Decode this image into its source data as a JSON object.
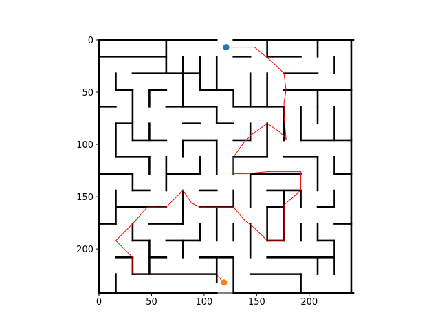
{
  "figure": {
    "x_ticks": [
      "0",
      "50",
      "100",
      "150",
      "200"
    ],
    "y_ticks": [
      "0",
      "50",
      "100",
      "150",
      "200"
    ]
  },
  "chart_data": {
    "type": "scatter",
    "title": "",
    "xlabel": "",
    "ylabel": "",
    "xlim": [
      0,
      242
    ],
    "ylim": [
      242,
      0
    ],
    "grid": false,
    "x_ticks": [
      0,
      50,
      100,
      150,
      200
    ],
    "y_ticks": [
      0,
      50,
      100,
      150,
      200
    ],
    "colors": {
      "wall": "#000000",
      "path": "#ff0000",
      "start": "#1f77b4",
      "end": "#ff7f0e"
    },
    "start": [
      121,
      7
    ],
    "end": [
      119,
      232
    ],
    "maze_walls": [
      [
        [
          0,
          0
        ],
        [
          112,
          0
        ]
      ],
      [
        [
          128,
          0
        ],
        [
          242,
          0
        ]
      ],
      [
        [
          0,
          0
        ],
        [
          0,
          242
        ]
      ],
      [
        [
          240,
          0
        ],
        [
          240,
          242
        ]
      ],
      [
        [
          0,
          242
        ],
        [
          112,
          242
        ]
      ],
      [
        [
          128,
          242
        ],
        [
          242,
          242
        ]
      ],
      [
        [
          0,
          16
        ],
        [
          64,
          16
        ]
      ],
      [
        [
          64,
          0
        ],
        [
          64,
          32
        ]
      ],
      [
        [
          80,
          16
        ],
        [
          80,
          32
        ]
      ],
      [
        [
          96,
          16
        ],
        [
          96,
          48
        ]
      ],
      [
        [
          112,
          16
        ],
        [
          112,
          48
        ]
      ],
      [
        [
          128,
          16
        ],
        [
          144,
          16
        ]
      ],
      [
        [
          160,
          0
        ],
        [
          160,
          16
        ]
      ],
      [
        [
          160,
          16
        ],
        [
          192,
          16
        ]
      ],
      [
        [
          208,
          0
        ],
        [
          208,
          16
        ]
      ],
      [
        [
          176,
          32
        ],
        [
          208,
          32
        ]
      ],
      [
        [
          224,
          16
        ],
        [
          224,
          32
        ]
      ],
      [
        [
          16,
          32
        ],
        [
          16,
          48
        ]
      ],
      [
        [
          16,
          48
        ],
        [
          32,
          48
        ]
      ],
      [
        [
          32,
          32
        ],
        [
          96,
          32
        ]
      ],
      [
        [
          80,
          32
        ],
        [
          80,
          64
        ]
      ],
      [
        [
          96,
          48
        ],
        [
          128,
          48
        ]
      ],
      [
        [
          128,
          48
        ],
        [
          128,
          64
        ]
      ],
      [
        [
          144,
          32
        ],
        [
          144,
          64
        ]
      ],
      [
        [
          160,
          32
        ],
        [
          160,
          64
        ]
      ],
      [
        [
          176,
          48
        ],
        [
          224,
          48
        ]
      ],
      [
        [
          208,
          48
        ],
        [
          208,
          64
        ]
      ],
      [
        [
          224,
          48
        ],
        [
          240,
          48
        ]
      ],
      [
        [
          0,
          64
        ],
        [
          16,
          64
        ]
      ],
      [
        [
          32,
          48
        ],
        [
          32,
          96
        ]
      ],
      [
        [
          48,
          48
        ],
        [
          64,
          48
        ]
      ],
      [
        [
          48,
          48
        ],
        [
          48,
          64
        ]
      ],
      [
        [
          64,
          64
        ],
        [
          80,
          64
        ]
      ],
      [
        [
          80,
          64
        ],
        [
          112,
          64
        ]
      ],
      [
        [
          112,
          64
        ],
        [
          112,
          80
        ]
      ],
      [
        [
          128,
          64
        ],
        [
          176,
          64
        ]
      ],
      [
        [
          176,
          64
        ],
        [
          176,
          96
        ]
      ],
      [
        [
          192,
          64
        ],
        [
          192,
          96
        ]
      ],
      [
        [
          208,
          64
        ],
        [
          208,
          80
        ]
      ],
      [
        [
          224,
          64
        ],
        [
          224,
          96
        ]
      ],
      [
        [
          16,
          80
        ],
        [
          32,
          80
        ]
      ],
      [
        [
          16,
          80
        ],
        [
          16,
          112
        ]
      ],
      [
        [
          48,
          80
        ],
        [
          48,
          96
        ]
      ],
      [
        [
          80,
          80
        ],
        [
          96,
          80
        ]
      ],
      [
        [
          112,
          80
        ],
        [
          128,
          80
        ]
      ],
      [
        [
          144,
          80
        ],
        [
          144,
          96
        ]
      ],
      [
        [
          160,
          80
        ],
        [
          160,
          112
        ]
      ],
      [
        [
          32,
          96
        ],
        [
          64,
          96
        ]
      ],
      [
        [
          80,
          96
        ],
        [
          112,
          96
        ]
      ],
      [
        [
          128,
          96
        ],
        [
          144,
          96
        ]
      ],
      [
        [
          192,
          96
        ],
        [
          240,
          96
        ]
      ],
      [
        [
          80,
          96
        ],
        [
          80,
          112
        ]
      ],
      [
        [
          16,
          112
        ],
        [
          48,
          112
        ]
      ],
      [
        [
          48,
          112
        ],
        [
          48,
          128
        ]
      ],
      [
        [
          64,
          112
        ],
        [
          64,
          144
        ]
      ],
      [
        [
          96,
          112
        ],
        [
          96,
          128
        ]
      ],
      [
        [
          112,
          96
        ],
        [
          112,
          128
        ]
      ],
      [
        [
          128,
          112
        ],
        [
          160,
          112
        ]
      ],
      [
        [
          176,
          112
        ],
        [
          208,
          112
        ]
      ],
      [
        [
          208,
          112
        ],
        [
          208,
          144
        ]
      ],
      [
        [
          224,
          112
        ],
        [
          224,
          128
        ]
      ],
      [
        [
          0,
          128
        ],
        [
          32,
          128
        ]
      ],
      [
        [
          32,
          128
        ],
        [
          32,
          144
        ]
      ],
      [
        [
          64,
          128
        ],
        [
          96,
          128
        ]
      ],
      [
        [
          128,
          112
        ],
        [
          128,
          128
        ]
      ],
      [
        [
          144,
          128
        ],
        [
          192,
          128
        ]
      ],
      [
        [
          144,
          128
        ],
        [
          144,
          160
        ]
      ],
      [
        [
          224,
          128
        ],
        [
          240,
          128
        ]
      ],
      [
        [
          32,
          144
        ],
        [
          48,
          144
        ]
      ],
      [
        [
          96,
          144
        ],
        [
          112,
          144
        ]
      ],
      [
        [
          160,
          144
        ],
        [
          192,
          144
        ]
      ],
      [
        [
          16,
          160
        ],
        [
          64,
          160
        ]
      ],
      [
        [
          16,
          144
        ],
        [
          16,
          176
        ]
      ],
      [
        [
          80,
          144
        ],
        [
          80,
          176
        ]
      ],
      [
        [
          96,
          160
        ],
        [
          128,
          160
        ]
      ],
      [
        [
          128,
          144
        ],
        [
          128,
          160
        ]
      ],
      [
        [
          176,
          144
        ],
        [
          176,
          192
        ]
      ],
      [
        [
          192,
          144
        ],
        [
          192,
          160
        ]
      ],
      [
        [
          208,
          160
        ],
        [
          224,
          160
        ]
      ],
      [
        [
          224,
          144
        ],
        [
          224,
          160
        ]
      ],
      [
        [
          0,
          176
        ],
        [
          16,
          176
        ]
      ],
      [
        [
          48,
          176
        ],
        [
          80,
          176
        ]
      ],
      [
        [
          112,
          160
        ],
        [
          112,
          192
        ]
      ],
      [
        [
          160,
          160
        ],
        [
          176,
          160
        ]
      ],
      [
        [
          160,
          160
        ],
        [
          160,
          192
        ]
      ],
      [
        [
          192,
          176
        ],
        [
          192,
          192
        ]
      ],
      [
        [
          224,
          176
        ],
        [
          240,
          176
        ]
      ],
      [
        [
          32,
          176
        ],
        [
          32,
          192
        ]
      ],
      [
        [
          32,
          192
        ],
        [
          48,
          192
        ]
      ],
      [
        [
          64,
          192
        ],
        [
          96,
          192
        ]
      ],
      [
        [
          96,
          176
        ],
        [
          96,
          192
        ]
      ],
      [
        [
          128,
          176
        ],
        [
          128,
          192
        ]
      ],
      [
        [
          144,
          176
        ],
        [
          144,
          208
        ]
      ],
      [
        [
          160,
          192
        ],
        [
          176,
          192
        ]
      ],
      [
        [
          208,
          176
        ],
        [
          208,
          192
        ]
      ],
      [
        [
          208,
          192
        ],
        [
          224,
          192
        ]
      ],
      [
        [
          16,
          208
        ],
        [
          32,
          208
        ]
      ],
      [
        [
          48,
          192
        ],
        [
          48,
          224
        ]
      ],
      [
        [
          48,
          208
        ],
        [
          64,
          208
        ]
      ],
      [
        [
          80,
          192
        ],
        [
          80,
          208
        ]
      ],
      [
        [
          96,
          208
        ],
        [
          128,
          208
        ]
      ],
      [
        [
          160,
          208
        ],
        [
          224,
          208
        ]
      ],
      [
        [
          208,
          208
        ],
        [
          208,
          224
        ]
      ],
      [
        [
          224,
          192
        ],
        [
          224,
          224
        ]
      ],
      [
        [
          32,
          208
        ],
        [
          32,
          224
        ]
      ],
      [
        [
          32,
          224
        ],
        [
          112,
          224
        ]
      ],
      [
        [
          112,
          208
        ],
        [
          112,
          232
        ]
      ],
      [
        [
          128,
          208
        ],
        [
          128,
          242
        ]
      ],
      [
        [
          144,
          224
        ],
        [
          192,
          224
        ]
      ],
      [
        [
          192,
          224
        ],
        [
          192,
          242
        ]
      ],
      [
        [
          16,
          224
        ],
        [
          16,
          242
        ]
      ]
    ],
    "solution_path": [
      [
        121,
        7
      ],
      [
        148,
        7
      ],
      [
        160,
        17
      ],
      [
        168,
        24
      ],
      [
        176,
        32
      ],
      [
        178,
        48
      ],
      [
        176,
        60
      ],
      [
        176,
        72
      ],
      [
        178,
        95
      ],
      [
        172,
        88
      ],
      [
        160,
        80
      ],
      [
        146,
        90
      ],
      [
        138,
        98
      ],
      [
        128,
        112
      ],
      [
        128,
        128
      ],
      [
        140,
        128
      ],
      [
        160,
        126
      ],
      [
        192,
        126
      ],
      [
        192,
        144
      ],
      [
        176,
        158
      ],
      [
        176,
        192
      ],
      [
        160,
        192
      ],
      [
        148,
        180
      ],
      [
        138,
        172
      ],
      [
        128,
        160
      ],
      [
        112,
        160
      ],
      [
        96,
        160
      ],
      [
        88,
        156
      ],
      [
        80,
        144
      ],
      [
        64,
        160
      ],
      [
        46,
        160
      ],
      [
        32,
        176
      ],
      [
        16,
        192
      ],
      [
        32,
        208
      ],
      [
        32,
        224
      ],
      [
        112,
        224
      ],
      [
        118,
        232
      ]
    ]
  }
}
